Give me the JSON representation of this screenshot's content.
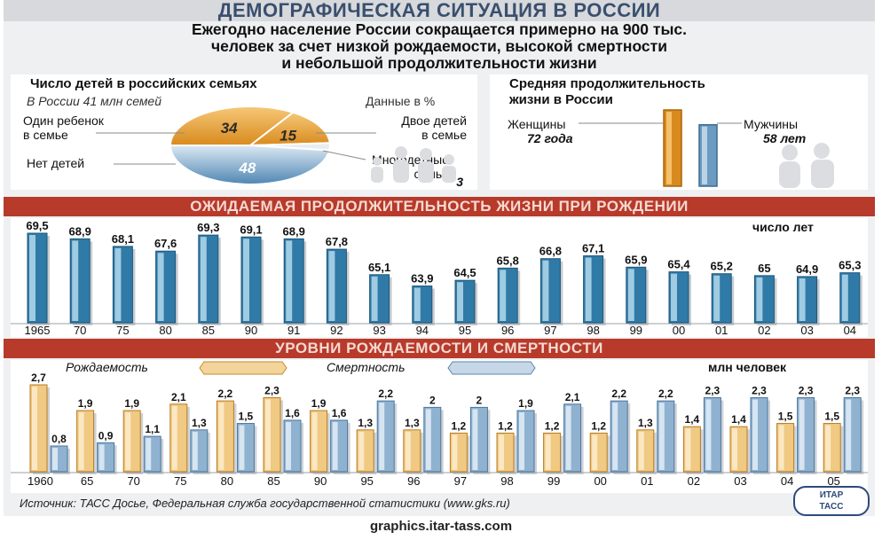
{
  "header": {
    "title": "ДЕМОГРАФИЧЕСКАЯ СИТУАЦИЯ В РОССИИ",
    "subtitle_lines": [
      "Ежегодно население России сокращается примерно на 900 тыс.",
      "человек за счет низкой рождаемости, высокой смертности",
      "и небольшой продолжительности жизни"
    ]
  },
  "families": {
    "title": "Число детей в российских семьях",
    "note": "В России 41 млн семей",
    "units": "Данные в %",
    "labels": {
      "one": "Один ребенок\nв семье",
      "none": "Нет детей",
      "two": "Двое детей\nв семье",
      "many": "Многодетные\nсемьи"
    }
  },
  "lifespan": {
    "title": "Средняя продолжительность\nжизни в России",
    "women_label": "Женщины",
    "women_value": "72 года",
    "men_label": "Мужчины",
    "men_value": "58 лет"
  },
  "expectancy": {
    "band": "ОЖИДАЕМАЯ ПРОДОЛЖИТЕЛЬНОСТЬ ЖИЗНИ ПРИ РОЖДЕНИИ",
    "units": "число лет"
  },
  "rates": {
    "band": "УРОВНИ РОЖДАЕМОСТИ И СМЕРТНОСТИ",
    "legend_birth": "Рождаемость",
    "legend_death": "Смертность",
    "units": "млн человек"
  },
  "source": "Источник: ТАСС Досье, Федеральная служба государственной статистики (www.gks.ru)",
  "logo": "ИТАР\nТАСС",
  "footer": "graphics.itar-tass.com",
  "colors": {
    "band": "#b73a2a",
    "orange": "#e8a23a",
    "blue": "#7fa6c6",
    "dark_blue": "#2d6f99"
  },
  "chart_data": [
    {
      "type": "pie",
      "title": "Число детей в российских семьях",
      "units": "Данные в %",
      "slices": [
        {
          "label": "Один ребенок в семье",
          "value": 34
        },
        {
          "label": "Двое детей в семье",
          "value": 15
        },
        {
          "label": "Многодетные семьи",
          "value": 3
        },
        {
          "label": "Нет детей",
          "value": 48
        }
      ]
    },
    {
      "type": "bar",
      "title": "Средняя продолжительность жизни в России",
      "categories": [
        "Женщины",
        "Мужчины"
      ],
      "values": [
        72,
        58
      ]
    },
    {
      "type": "bar",
      "title": "ОЖИДАЕМАЯ ПРОДОЛЖИТЕЛЬНОСТЬ ЖИЗНИ ПРИ РОЖДЕНИИ",
      "ylabel": "число лет",
      "categories": [
        "1965",
        "70",
        "75",
        "80",
        "85",
        "90",
        "91",
        "92",
        "93",
        "94",
        "95",
        "96",
        "97",
        "98",
        "99",
        "00",
        "01",
        "02",
        "03",
        "04"
      ],
      "values": [
        69.5,
        68.9,
        68.1,
        67.6,
        69.3,
        69.1,
        68.9,
        67.8,
        65.1,
        63.9,
        64.5,
        65.8,
        66.8,
        67.1,
        65.9,
        65.4,
        65.2,
        65,
        64.9,
        65.3
      ],
      "value_labels": [
        "69,5",
        "68,9",
        "68,1",
        "67,6",
        "69,3",
        "69,1",
        "68,9",
        "67,8",
        "65,1",
        "63,9",
        "64,5",
        "65,8",
        "66,8",
        "67,1",
        "65,9",
        "65,4",
        "65,2",
        "65",
        "64,9",
        "65,3"
      ]
    },
    {
      "type": "bar",
      "title": "УРОВНИ РОЖДАЕМОСТИ И СМЕРТНОСТИ",
      "ylabel": "млн человек",
      "categories": [
        "1960",
        "65",
        "70",
        "75",
        "80",
        "85",
        "90",
        "95",
        "96",
        "97",
        "98",
        "99",
        "00",
        "01",
        "02",
        "03",
        "04",
        "05"
      ],
      "series": [
        {
          "name": "Рождаемость",
          "values": [
            2.7,
            1.9,
            1.9,
            2.1,
            2.2,
            2.3,
            1.9,
            1.3,
            1.3,
            1.2,
            1.2,
            1.2,
            1.2,
            1.3,
            1.4,
            1.4,
            1.5,
            1.5
          ],
          "value_labels": [
            "2,7",
            "1,9",
            "1,9",
            "2,1",
            "2,2",
            "2,3",
            "1,9",
            "1,3",
            "1,3",
            "1,2",
            "1,2",
            "1,2",
            "1,2",
            "1,3",
            "1,4",
            "1,4",
            "1,5",
            "1,5"
          ]
        },
        {
          "name": "Смертность",
          "values": [
            0.8,
            0.9,
            1.1,
            1.3,
            1.5,
            1.6,
            1.6,
            2.2,
            2,
            2,
            1.9,
            2.1,
            2.2,
            2.2,
            2.3,
            2.3,
            2.3,
            2.3
          ],
          "value_labels": [
            "0,8",
            "0,9",
            "1,1",
            "1,3",
            "1,5",
            "1,6",
            "1,6",
            "2,2",
            "2",
            "2",
            "1,9",
            "2,1",
            "2,2",
            "2,2",
            "2,3",
            "2,3",
            "2,3",
            "2,3"
          ]
        }
      ]
    }
  ]
}
